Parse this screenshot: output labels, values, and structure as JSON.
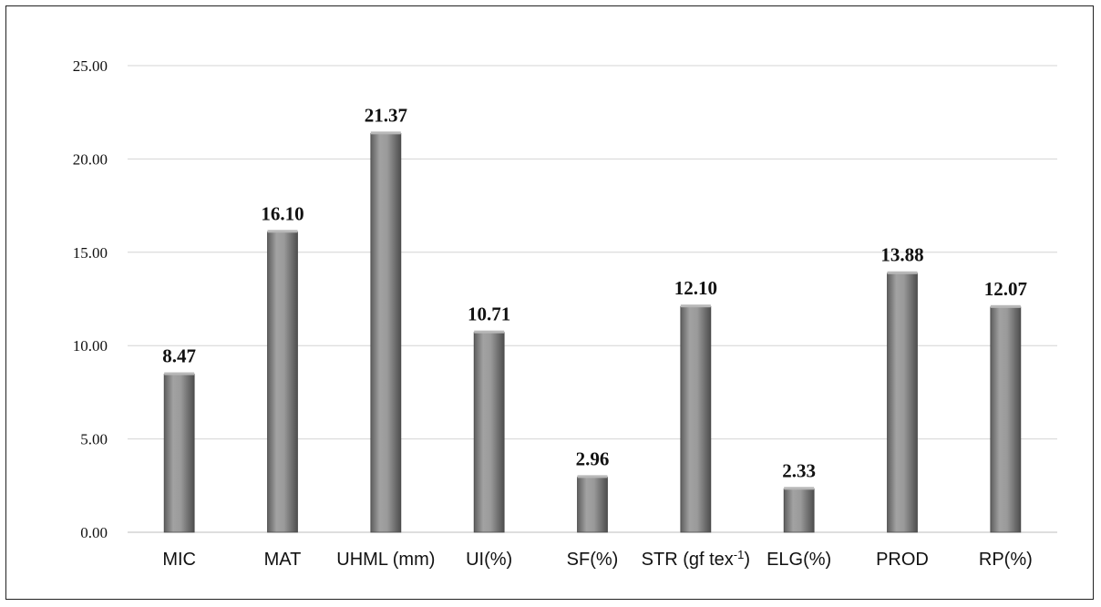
{
  "chart_data": {
    "type": "bar",
    "title": "",
    "xlabel": "",
    "ylabel": "",
    "ylim": [
      0,
      25
    ],
    "yticks": [
      "0.00",
      "5.00",
      "10.00",
      "15.00",
      "20.00",
      "25.00"
    ],
    "grid": true,
    "legend": "none",
    "bar_color": "#8a8a8a",
    "categories": [
      {
        "label": "MIC"
      },
      {
        "label": "MAT"
      },
      {
        "label": "UHML (mm)"
      },
      {
        "label": "UI(%)"
      },
      {
        "label": "SF(%)"
      },
      {
        "label": "STR (gf tex",
        "sup": "-1",
        "suffix": ")"
      },
      {
        "label": "ELG(%)"
      },
      {
        "label": "PROD"
      },
      {
        "label": "RP(%)"
      }
    ],
    "values": [
      8.47,
      16.1,
      21.37,
      10.71,
      2.96,
      12.1,
      2.33,
      13.88,
      12.07
    ],
    "data_labels": [
      "8.47",
      "16.10",
      "21.37",
      "10.71",
      "2.96",
      "12.10",
      "2.33",
      "13.88",
      "12.07"
    ]
  }
}
